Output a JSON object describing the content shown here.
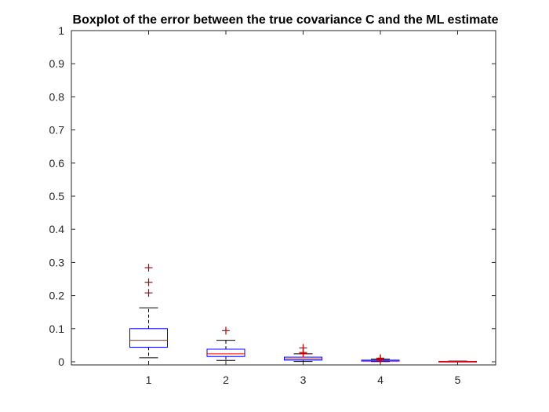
{
  "chart_data": {
    "type": "boxplot",
    "title": "Boxplot of the error between the true covariance C and the ML estimate",
    "xlabel": "",
    "ylabel": "",
    "categories": [
      "1",
      "2",
      "3",
      "4",
      "5"
    ],
    "ylim": [
      0,
      1
    ],
    "yticks": [
      "0",
      "0.1",
      "0.2",
      "0.3",
      "0.4",
      "0.5",
      "0.6",
      "0.7",
      "0.8",
      "0.9",
      "1"
    ],
    "grid": false,
    "boxes": [
      {
        "q1": 0.044,
        "median": 0.065,
        "q3": 0.1,
        "whisker_low": 0.012,
        "whisker_high": 0.163,
        "outliers": [
          0.208,
          0.24,
          0.284
        ]
      },
      {
        "q1": 0.016,
        "median": 0.024,
        "q3": 0.038,
        "whisker_low": 0.004,
        "whisker_high": 0.065,
        "outliers": [
          0.094
        ]
      },
      {
        "q1": 0.005,
        "median": 0.009,
        "q3": 0.014,
        "whisker_low": 0.001,
        "whisker_high": 0.024,
        "outliers": [
          0.025,
          0.028,
          0.042
        ]
      },
      {
        "q1": 0.002,
        "median": 0.003,
        "q3": 0.005,
        "whisker_low": 0.0005,
        "whisker_high": 0.008,
        "outliers": [
          0.007,
          0.009,
          0.011
        ]
      },
      {
        "q1": 0.0008,
        "median": 0.001,
        "q3": 0.0013,
        "whisker_low": 0.0003,
        "whisker_high": 0.002,
        "outliers": []
      }
    ],
    "colors": {
      "box": "#0000ff",
      "median": "#ff0000",
      "whisker": "#000000",
      "outlier": "#c00000",
      "axis": "#262626"
    }
  }
}
